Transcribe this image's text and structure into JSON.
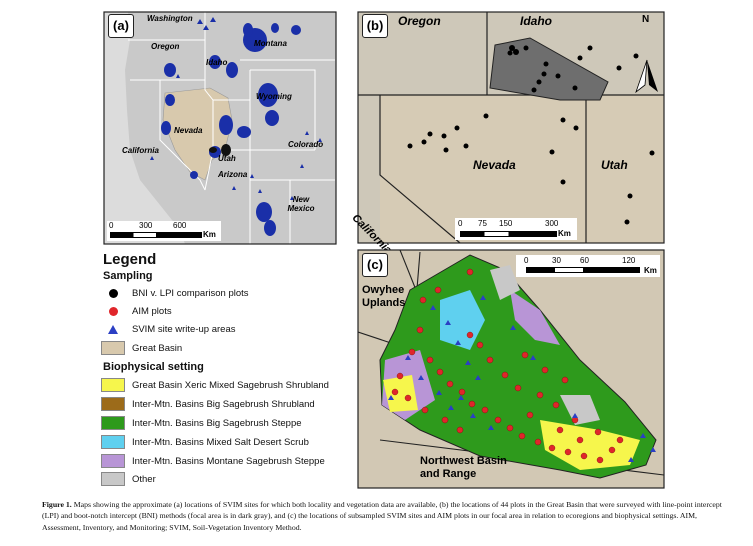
{
  "panel_a": {
    "label": "(a)",
    "states": [
      "Washington",
      "Oregon",
      "Idaho",
      "Montana",
      "Wyoming",
      "Nevada",
      "Utah",
      "Colorado",
      "California",
      "Arizona",
      "New Mexico"
    ],
    "scale_ticks": [
      "0",
      "300",
      "600"
    ],
    "scale_unit": "Km"
  },
  "panel_b": {
    "label": "(b)",
    "states": [
      "Oregon",
      "Idaho",
      "Nevada",
      "Utah",
      "California"
    ],
    "north": "N",
    "scale_ticks": [
      "0",
      "75",
      "150",
      "300"
    ],
    "scale_unit": "Km"
  },
  "panel_c": {
    "label": "(c)",
    "regions": [
      "Owyhee Uplands",
      "Northwest Basin and Range"
    ],
    "scale_ticks": [
      "0",
      "30",
      "60",
      "120"
    ],
    "scale_unit": "Km"
  },
  "legend": {
    "title": "Legend",
    "sampling_heading": "Sampling",
    "sampling": [
      {
        "label": "BNI v. LPI comparison plots",
        "icon": "black-dot",
        "color": "#000000"
      },
      {
        "label": "AIM plots",
        "icon": "red-dot",
        "color": "#e0262b"
      },
      {
        "label": "SVIM site write-up areas",
        "icon": "blue-triangle",
        "color": "#2b3fc4"
      }
    ],
    "great_basin": {
      "label": "Great Basin",
      "color": "#d8c9ad"
    },
    "bio_heading": "Biophysical setting",
    "bio": [
      {
        "label": "Great Basin Xeric Mixed Sagebrush Shrubland",
        "color": "#f6f64c"
      },
      {
        "label": "Inter-Mtn. Basins Big Sagebrush Shrubland",
        "color": "#9c6b1a"
      },
      {
        "label": "Inter-Mtn. Basins Big Sagebrush Steppe",
        "color": "#2e9a1c"
      },
      {
        "label": "Inter-Mtn. Basins Mixed Salt Desert Scrub",
        "color": "#5fd0ef"
      },
      {
        "label": "Inter-Mtn. Basins Montane Sagebrush Steppe",
        "color": "#b895d6"
      },
      {
        "label": "Other",
        "color": "#c8c8c8"
      }
    ]
  },
  "caption": {
    "lead": "Figure 1.",
    "text": " Maps showing the approximate (a) locations of SVIM sites for which both locality and vegetation data are available, (b) the locations of 44 plots in the Great Basin that were surveyed with line-point intercept (LPI) and boot-notch intercept (BNI) methods (focal area is in dark gray), and (c) the locations of subsampled SVIM sites and AIM plots in our focal area in relation to ecoregions and biophysical settings. AIM, Assessment, Inventory, and Monitoring; SVIM, Soil-Vegetation Inventory Method."
  }
}
